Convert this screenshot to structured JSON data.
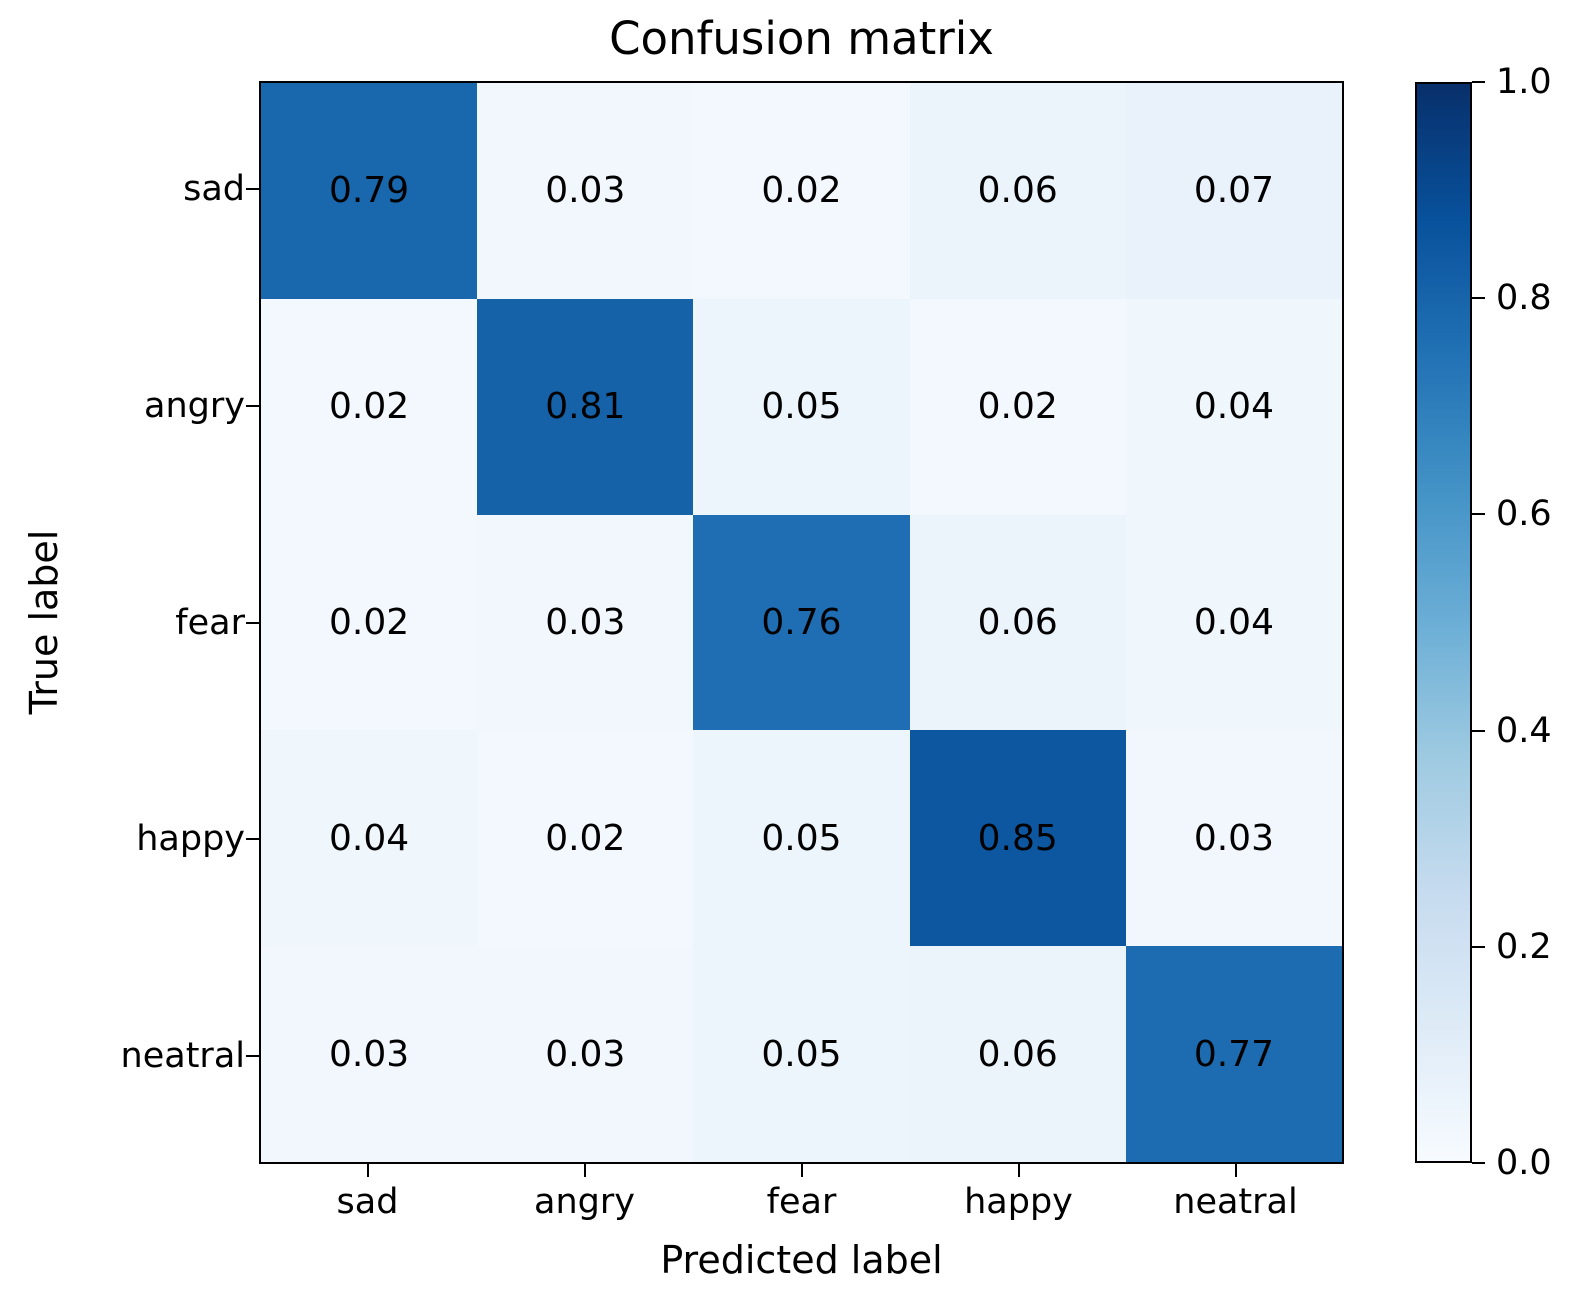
{
  "figure": {
    "title": "Confusion matrix",
    "xlabel": "Predicted label",
    "ylabel": "True label"
  },
  "chart_data": {
    "type": "heatmap",
    "title": "Confusion matrix",
    "xlabel": "Predicted label",
    "ylabel": "True label",
    "x_categories": [
      "sad",
      "angry",
      "fear",
      "happy",
      "neatral"
    ],
    "y_categories": [
      "sad",
      "angry",
      "fear",
      "happy",
      "neatral"
    ],
    "matrix": [
      [
        0.79,
        0.03,
        0.02,
        0.06,
        0.07
      ],
      [
        0.02,
        0.81,
        0.05,
        0.02,
        0.04
      ],
      [
        0.02,
        0.03,
        0.76,
        0.06,
        0.04
      ],
      [
        0.04,
        0.02,
        0.05,
        0.85,
        0.03
      ],
      [
        0.03,
        0.03,
        0.05,
        0.06,
        0.77
      ]
    ],
    "value_format_decimals": 2,
    "colormap": "Blues",
    "vmin": 0.0,
    "vmax": 1.0,
    "colorbar_ticks": [
      "1.0",
      "0.8",
      "0.6",
      "0.4",
      "0.2",
      "0.0"
    ],
    "legend_position": "colorbar-right",
    "grid": false,
    "cell_text_color": "#000000",
    "colormap_min_hex": "#f7fbff",
    "colormap_max_hex": "#08306b"
  }
}
